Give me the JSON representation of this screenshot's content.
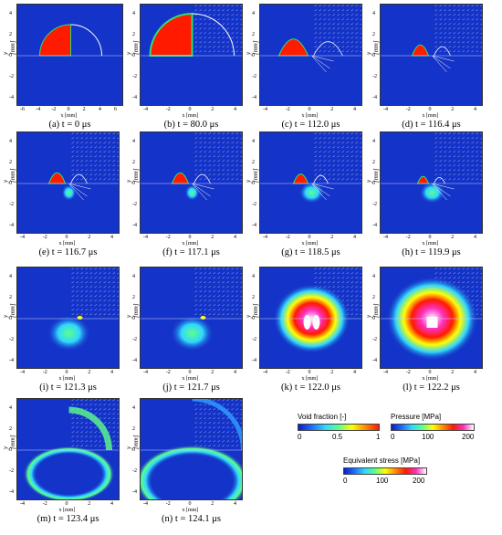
{
  "axis": {
    "xlabel": "x [mm]",
    "ylabel": "y [mm]",
    "yticks": [
      "4",
      "2",
      "0",
      "-2",
      "-4"
    ],
    "xticks_first": [
      "-6",
      "-4",
      "-2",
      "0",
      "2",
      "4",
      "6"
    ],
    "xticks": [
      "-4",
      "-2",
      "0",
      "2",
      "4"
    ]
  },
  "panels": [
    {
      "caption": "(a) t = 0 μs",
      "state": "a"
    },
    {
      "caption": "(b) t = 80.0 μs",
      "state": "b"
    },
    {
      "caption": "(c) t = 112.0 μs",
      "state": "c"
    },
    {
      "caption": "(d) t = 116.4 μs",
      "state": "d"
    },
    {
      "caption": "(e) t = 116.7 μs",
      "state": "e"
    },
    {
      "caption": "(f) t = 117.1 μs",
      "state": "f"
    },
    {
      "caption": "(g) t = 118.5 μs",
      "state": "g"
    },
    {
      "caption": "(h) t = 119.9 μs",
      "state": "h"
    },
    {
      "caption": "(i) t = 121.3 μs",
      "state": "i"
    },
    {
      "caption": "(j) t = 121.7 μs",
      "state": "j"
    },
    {
      "caption": "(k) t = 122.0 μs",
      "state": "k"
    },
    {
      "caption": "(l) t = 122.2 μs",
      "state": "l"
    },
    {
      "caption": "(m) t = 123.4 μs",
      "state": "m"
    },
    {
      "caption": "(n) t = 124.1 μs",
      "state": "n"
    }
  ],
  "legends": {
    "void": {
      "title": "Void fraction [-]",
      "ticks": [
        "0",
        "0.5",
        "1"
      ]
    },
    "pressure": {
      "title": "Pressure [MPa]",
      "ticks": [
        "0",
        "100",
        "200"
      ]
    },
    "stress": {
      "title": "Equivalent stress [MPa]",
      "ticks": [
        "0",
        "100",
        "200"
      ]
    }
  },
  "colors": {
    "background": "#1433c8",
    "bubble": "#ff1a00",
    "bubble_edge": "#2ee070"
  }
}
